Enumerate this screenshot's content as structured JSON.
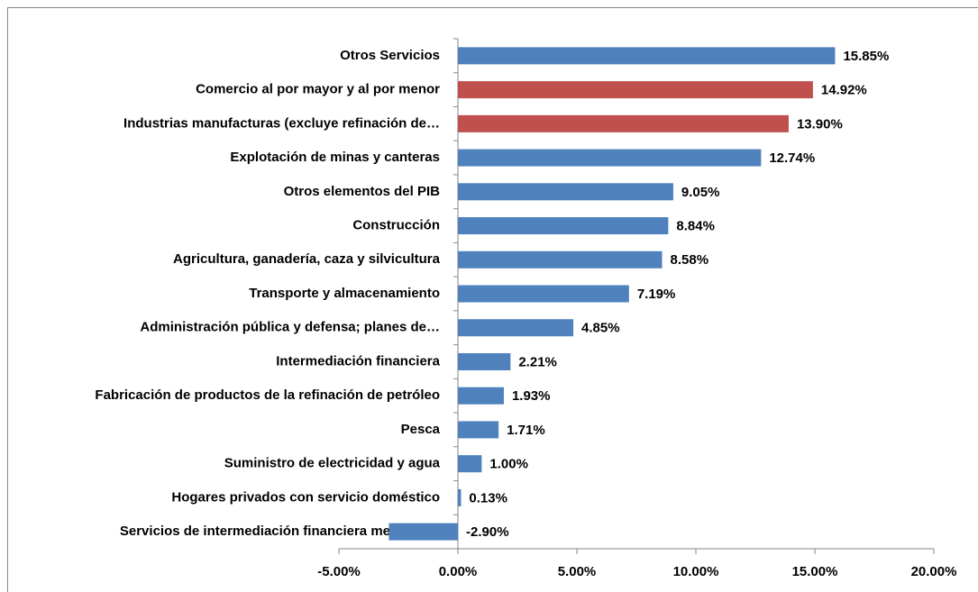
{
  "chart_data": {
    "type": "barh",
    "categories": [
      "Otros Servicios",
      "Comercio al por mayor y al por menor",
      "Industrias manufacturas (excluye refinación de…",
      "Explotación de minas y canteras",
      "Otros elementos del PIB",
      "Construcción",
      "Agricultura, ganadería, caza y silvicultura",
      "Transporte y almacenamiento",
      "Administración pública y defensa; planes de…",
      "Intermediación financiera",
      "Fabricación de productos de la refinación de petróleo",
      "Pesca",
      "Suministro de electricidad y agua",
      "Hogares privados con servicio doméstico",
      "Servicios de intermediación financiera medidos…"
    ],
    "values": [
      15.85,
      14.92,
      13.9,
      12.74,
      9.05,
      8.84,
      8.58,
      7.19,
      4.85,
      2.21,
      1.93,
      1.71,
      1.0,
      0.13,
      -2.9
    ],
    "value_labels": [
      "15.85%",
      "14.92%",
      "13.90%",
      "12.74%",
      "9.05%",
      "8.84%",
      "8.58%",
      "7.19%",
      "4.85%",
      "2.21%",
      "1.93%",
      "1.71%",
      "1.00%",
      "0.13%",
      "-2.90%"
    ],
    "colors": [
      "#4f81bd",
      "#c0504d",
      "#c0504d",
      "#4f81bd",
      "#4f81bd",
      "#4f81bd",
      "#4f81bd",
      "#4f81bd",
      "#4f81bd",
      "#4f81bd",
      "#4f81bd",
      "#4f81bd",
      "#4f81bd",
      "#4f81bd",
      "#4f81bd"
    ],
    "xlim": [
      -5,
      20
    ],
    "xticks": [
      {
        "value": -5,
        "label": "-5.00%"
      },
      {
        "value": 0,
        "label": "0.00%"
      },
      {
        "value": 5,
        "label": "5.00%"
      },
      {
        "value": 10,
        "label": "10.00%"
      },
      {
        "value": 15,
        "label": "15.00%"
      },
      {
        "value": 20,
        "label": "20.00%"
      }
    ],
    "grid": false
  }
}
